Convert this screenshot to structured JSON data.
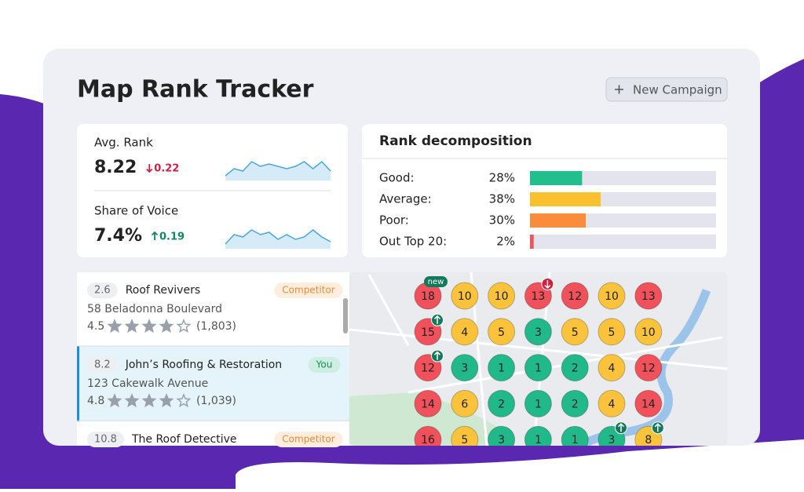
{
  "header": {
    "title": "Map Rank Tracker",
    "button": "New Campaign"
  },
  "metrics": [
    {
      "label": "Avg. Rank",
      "value": "8.22",
      "change": "0.22",
      "direction": "down",
      "trend": [
        2,
        5,
        4,
        8,
        6,
        7,
        6,
        5,
        6,
        8,
        5,
        8,
        4
      ]
    },
    {
      "label": "Share of Voice",
      "value": "7.4%",
      "change": "0.19",
      "direction": "up",
      "trend": [
        2,
        6,
        5,
        8,
        6,
        7,
        4,
        6,
        4,
        5,
        8,
        5,
        3
      ]
    }
  ],
  "decomposition": {
    "title": "Rank decomposition",
    "xlim": [
      0,
      100
    ],
    "rows": [
      {
        "label": "Good:",
        "value": 28,
        "value_label": "28%",
        "color": "#20bf8c"
      },
      {
        "label": "Average:",
        "value": 38,
        "value_label": "38%",
        "color": "#fbc02e"
      },
      {
        "label": "Poor:",
        "value": 30,
        "value_label": "30%",
        "color": "#fb8c3c"
      },
      {
        "label": "Out Top 20:",
        "value": 2,
        "value_label": "2%",
        "color": "#f2545b"
      }
    ]
  },
  "listings": [
    {
      "rank": "2.6",
      "name": "Roof Revivers",
      "badge": "Competitor",
      "address": "58 Beladonna Boulevard",
      "rating": 4.5,
      "reviews": "(1,803)",
      "selected": false
    },
    {
      "rank": "8.2",
      "name": "John’s Roofing & Restoration",
      "badge": "You",
      "address": "123 Cakewalk Avenue",
      "rating": 4.8,
      "reviews": "(1,039)",
      "selected": true
    },
    {
      "rank": "10.8",
      "name": "The Roof Detective",
      "badge": "Competitor",
      "selected": false
    }
  ],
  "map": {
    "status_colors": {
      "good": "#22b98a",
      "average": "#fbc33b",
      "poor": "#f0515a"
    },
    "rows": [
      [
        {
          "rank": 18,
          "status": "poor",
          "badge": "new"
        },
        {
          "rank": 10,
          "status": "average"
        },
        {
          "rank": 10,
          "status": "average"
        },
        {
          "rank": 13,
          "status": "poor",
          "trend": "down"
        },
        {
          "rank": 12,
          "status": "poor"
        },
        {
          "rank": 10,
          "status": "average"
        },
        {
          "rank": 13,
          "status": "poor"
        }
      ],
      [
        {
          "rank": 15,
          "status": "poor",
          "trend": "up"
        },
        {
          "rank": 4,
          "status": "average"
        },
        {
          "rank": 5,
          "status": "average"
        },
        {
          "rank": 3,
          "status": "good"
        },
        {
          "rank": 5,
          "status": "average"
        },
        {
          "rank": 5,
          "status": "average"
        },
        {
          "rank": 10,
          "status": "average"
        }
      ],
      [
        {
          "rank": 12,
          "status": "poor",
          "trend": "up"
        },
        {
          "rank": 3,
          "status": "good"
        },
        {
          "rank": 1,
          "status": "good"
        },
        {
          "rank": 1,
          "status": "good"
        },
        {
          "rank": 2,
          "status": "good"
        },
        {
          "rank": 4,
          "status": "average"
        },
        {
          "rank": 12,
          "status": "poor"
        }
      ],
      [
        {
          "rank": 14,
          "status": "poor"
        },
        {
          "rank": 6,
          "status": "average"
        },
        {
          "rank": 2,
          "status": "good"
        },
        {
          "rank": 1,
          "status": "good"
        },
        {
          "rank": 2,
          "status": "good"
        },
        {
          "rank": 4,
          "status": "average"
        },
        {
          "rank": 14,
          "status": "poor"
        }
      ],
      [
        {
          "rank": 16,
          "status": "poor"
        },
        {
          "rank": 5,
          "status": "average"
        },
        {
          "rank": 3,
          "status": "good"
        },
        {
          "rank": 1,
          "status": "good"
        },
        {
          "rank": 1,
          "status": "good"
        },
        {
          "rank": 3,
          "status": "good",
          "trend": "up"
        },
        {
          "rank": 8,
          "status": "average",
          "trend": "up"
        }
      ]
    ]
  }
}
